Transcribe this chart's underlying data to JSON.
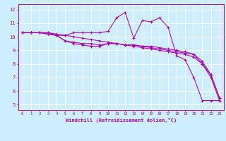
{
  "title": "",
  "xlabel": "Windchill (Refroidissement éolien,°C)",
  "ylabel": "",
  "bg_color": "#cceeff",
  "grid_color": "#ffffff",
  "line_color": "#aa00aa",
  "xlim": [
    -0.5,
    23.5
  ],
  "ylim": [
    4.6,
    12.4
  ],
  "xticks": [
    0,
    1,
    2,
    3,
    4,
    5,
    6,
    7,
    8,
    9,
    10,
    11,
    12,
    13,
    14,
    15,
    16,
    17,
    18,
    19,
    20,
    21,
    22,
    23
  ],
  "yticks": [
    5,
    6,
    7,
    8,
    9,
    10,
    11,
    12
  ],
  "line1_y": [
    10.3,
    10.3,
    10.3,
    10.3,
    10.1,
    10.1,
    10.3,
    10.3,
    10.3,
    10.3,
    10.4,
    11.4,
    11.8,
    9.9,
    11.2,
    11.1,
    11.4,
    10.7,
    8.6,
    8.3,
    7.0,
    5.3,
    5.3,
    5.3
  ],
  "line2_y": [
    10.3,
    10.3,
    10.3,
    10.2,
    10.1,
    9.7,
    9.5,
    9.4,
    9.3,
    9.3,
    9.5,
    9.5,
    9.4,
    9.4,
    9.3,
    9.2,
    9.1,
    9.0,
    8.9,
    8.8,
    8.7,
    8.0,
    7.0,
    5.3
  ],
  "line3_y": [
    10.3,
    10.3,
    10.3,
    10.2,
    10.1,
    9.7,
    9.6,
    9.5,
    9.5,
    9.4,
    9.5,
    9.5,
    9.4,
    9.4,
    9.3,
    9.3,
    9.2,
    9.1,
    9.0,
    8.9,
    8.7,
    8.2,
    7.2,
    5.5
  ],
  "line4_y": [
    10.3,
    10.3,
    10.3,
    10.3,
    10.2,
    10.1,
    10.0,
    9.9,
    9.8,
    9.7,
    9.6,
    9.5,
    9.4,
    9.3,
    9.2,
    9.1,
    9.0,
    8.9,
    8.8,
    8.7,
    8.5,
    8.0,
    7.2,
    5.5
  ]
}
